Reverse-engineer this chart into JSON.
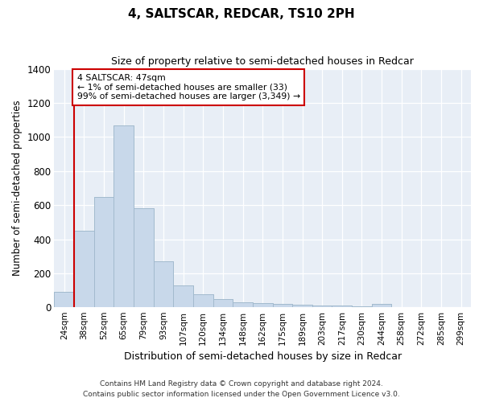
{
  "title": "4, SALTSCAR, REDCAR, TS10 2PH",
  "subtitle": "Size of property relative to semi-detached houses in Redcar",
  "xlabel": "Distribution of semi-detached houses by size in Redcar",
  "ylabel": "Number of semi-detached properties",
  "footnote1": "Contains HM Land Registry data © Crown copyright and database right 2024.",
  "footnote2": "Contains public sector information licensed under the Open Government Licence v3.0.",
  "annotation_title": "4 SALTSCAR: 47sqm",
  "annotation_line1": "← 1% of semi-detached houses are smaller (33)",
  "annotation_line2": "99% of semi-detached houses are larger (3,349) →",
  "bar_color": "#c8d8ea",
  "bar_edge_color": "#a0b8cc",
  "redline_color": "#cc0000",
  "annotation_box_color": "#cc0000",
  "background_color": "#e8eef6",
  "categories": [
    "24sqm",
    "38sqm",
    "52sqm",
    "65sqm",
    "79sqm",
    "93sqm",
    "107sqm",
    "120sqm",
    "134sqm",
    "148sqm",
    "162sqm",
    "175sqm",
    "189sqm",
    "203sqm",
    "217sqm",
    "230sqm",
    "244sqm",
    "258sqm",
    "272sqm",
    "285sqm",
    "299sqm"
  ],
  "bar_heights": [
    90,
    450,
    650,
    1070,
    580,
    270,
    130,
    75,
    50,
    30,
    25,
    22,
    18,
    10,
    10,
    5,
    20,
    3,
    3,
    3,
    3
  ],
  "red_line_bar_index": 1,
  "ylim": [
    0,
    1400
  ],
  "yticks": [
    0,
    200,
    400,
    600,
    800,
    1000,
    1200,
    1400
  ],
  "figwidth": 6.0,
  "figheight": 5.0,
  "dpi": 100
}
